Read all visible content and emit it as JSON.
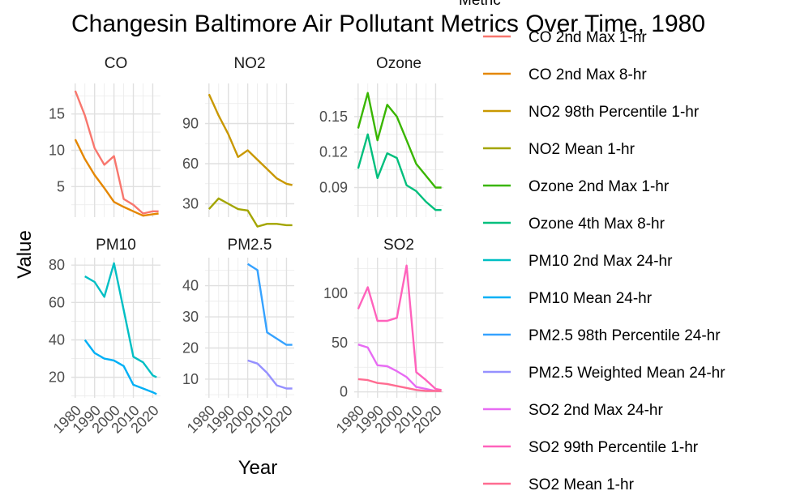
{
  "chart_data": {
    "type": "line",
    "title": "Changesin Baltimore Air Pollutant Metrics Over Time,  1980",
    "xlabel": "Year",
    "ylabel": "Value",
    "legend_title": "Metric",
    "legend_placement": "right",
    "x_ticks": [
      "1980",
      "1990",
      "2000",
      "2010",
      "2020"
    ],
    "xlim": [
      1978,
      2024
    ],
    "grid": true,
    "panels": [
      {
        "name": "CO",
        "ylim": [
          0.8,
          19.2
        ],
        "yticks": [
          5,
          10,
          15
        ],
        "series": [
          {
            "name": "CO 2nd Max 1-hr",
            "color": "#F8766D",
            "x": [
              1980,
              1985,
              1990,
              1995,
              2000,
              2005,
              2010,
              2015,
              2020,
              2023
            ],
            "y": [
              18.2,
              14.8,
              10.3,
              8.0,
              9.2,
              3.3,
              2.5,
              1.3,
              1.6,
              1.6
            ]
          },
          {
            "name": "CO 2nd Max 8-hr",
            "color": "#E58700",
            "x": [
              1980,
              1985,
              1990,
              1995,
              2000,
              2005,
              2010,
              2015,
              2020,
              2023
            ],
            "y": [
              11.5,
              8.8,
              6.6,
              4.8,
              2.9,
              2.2,
              1.6,
              1.0,
              1.2,
              1.3
            ]
          }
        ]
      },
      {
        "name": "NO2",
        "ylim": [
          20,
          120
        ],
        "yticks": [
          30,
          60,
          90
        ],
        "series": [
          {
            "name": "NO2 98th Percentile 1-hr",
            "color": "#C99800",
            "x": [
              1980,
              1985,
              1990,
              1995,
              2000,
              2005,
              2010,
              2015,
              2020,
              2023
            ],
            "y": [
              112,
              96,
              82,
              65,
              70,
              63,
              56,
              49,
              45,
              44
            ]
          },
          {
            "name": "NO2 Mean 1-hr",
            "color": "#A3A500",
            "x": [
              1980,
              1985,
              1990,
              1995,
              2000,
              2005,
              2010,
              2015,
              2020,
              2023
            ],
            "y": [
              26,
              34,
              30,
              26,
              25,
              13,
              15,
              15,
              14,
              14
            ]
          }
        ]
      },
      {
        "name": "Ozone",
        "ylim": [
          0.065,
          0.178
        ],
        "yticks": [
          0.09,
          0.12,
          0.15
        ],
        "series": [
          {
            "name": "Ozone 2nd Max 1-hr",
            "color": "#39B600",
            "x": [
              1980,
              1985,
              1990,
              1995,
              2000,
              2005,
              2010,
              2015,
              2020,
              2023
            ],
            "y": [
              0.14,
              0.17,
              0.13,
              0.16,
              0.15,
              0.13,
              0.11,
              0.1,
              0.09,
              0.09
            ]
          },
          {
            "name": "Ozone 4th Max 8-hr",
            "color": "#00BF7D",
            "x": [
              1980,
              1985,
              1990,
              1995,
              2000,
              2005,
              2010,
              2015,
              2020,
              2023
            ],
            "y": [
              0.106,
              0.135,
              0.098,
              0.119,
              0.115,
              0.092,
              0.087,
              0.078,
              0.071,
              0.071
            ]
          }
        ]
      },
      {
        "name": "PM10",
        "ylim": [
          9,
          84
        ],
        "yticks": [
          20,
          40,
          60,
          80
        ],
        "series": [
          {
            "name": "PM10 2nd Max 24-hr",
            "color": "#00BFC4",
            "x": [
              1985,
              1990,
              1995,
              2000,
              2005,
              2010,
              2015,
              2020,
              2022
            ],
            "y": [
              74,
              71,
              63,
              81,
              56,
              31,
              28,
              21,
              20
            ]
          },
          {
            "name": "PM10 Mean 24-hr",
            "color": "#00B0F6",
            "x": [
              1985,
              1990,
              1995,
              2000,
              2005,
              2010,
              2015,
              2020,
              2022
            ],
            "y": [
              40,
              33,
              30,
              29,
              26,
              16,
              14,
              12,
              11
            ]
          }
        ]
      },
      {
        "name": "PM2.5",
        "ylim": [
          4,
          49
        ],
        "yticks": [
          10,
          20,
          30,
          40
        ],
        "series": [
          {
            "name": "PM2.5 98th Percentile 24-hr",
            "color": "#35A2FF",
            "x": [
              2000,
              2005,
              2010,
              2015,
              2020,
              2023
            ],
            "y": [
              47,
              45,
              25,
              23,
              21,
              21
            ]
          },
          {
            "name": "PM2.5 Weighted Mean 24-hr",
            "color": "#9590FF",
            "x": [
              2000,
              2005,
              2010,
              2015,
              2020,
              2023
            ],
            "y": [
              16,
              15,
              12,
              8,
              7,
              7
            ]
          }
        ]
      },
      {
        "name": "SO2",
        "ylim": [
          -6,
          136
        ],
        "yticks": [
          0,
          50,
          100
        ],
        "series": [
          {
            "name": "SO2 2nd Max 24-hr",
            "color": "#E76BF3",
            "x": [
              1980,
              1985,
              1990,
              1995,
              2000,
              2005,
              2010,
              2015,
              2020,
              2023
            ],
            "y": [
              48,
              45,
              27,
              26,
              21,
              15,
              5,
              3,
              1,
              1
            ]
          },
          {
            "name": "SO2 99th Percentile 1-hr",
            "color": "#FF62BC",
            "x": [
              1980,
              1985,
              1990,
              1995,
              2000,
              2005,
              2010,
              2015,
              2020,
              2023
            ],
            "y": [
              84,
              106,
              72,
              72,
              75,
              128,
              20,
              12,
              3,
              2
            ]
          },
          {
            "name": "SO2 Mean 1-hr",
            "color": "#FF6C91",
            "x": [
              1980,
              1985,
              1990,
              1995,
              2000,
              2005,
              2010,
              2015,
              2020,
              2023
            ],
            "y": [
              13,
              12,
              9,
              8,
              6,
              4,
              2,
              1,
              1,
              1
            ]
          }
        ]
      }
    ]
  }
}
